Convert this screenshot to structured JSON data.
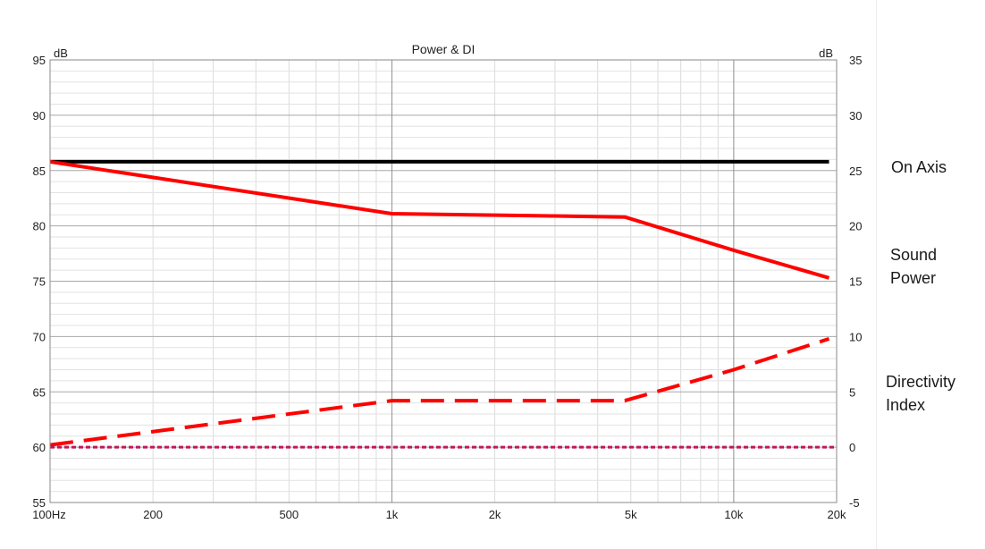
{
  "chart_data": {
    "type": "line",
    "title": "Power & DI",
    "left_axis": {
      "unit": "dB",
      "ylim": [
        55,
        95
      ],
      "ticks": [
        95,
        90,
        85,
        80,
        75,
        70,
        65,
        60,
        55
      ]
    },
    "right_axis": {
      "unit": "dB",
      "ylim": [
        -5,
        35
      ],
      "ticks": [
        35,
        30,
        25,
        20,
        15,
        10,
        5,
        0,
        -5
      ]
    },
    "x_axis": {
      "scale": "log",
      "xlim": [
        100,
        20000
      ],
      "tick_values": [
        100,
        200,
        500,
        1000,
        2000,
        5000,
        10000,
        20000
      ],
      "tick_labels": [
        "100Hz",
        "200",
        "500",
        "1k",
        "2k",
        "5k",
        "10k",
        "20k"
      ]
    },
    "grid": true,
    "series": [
      {
        "name": "On Axis",
        "axis": "left",
        "style": "solid",
        "color": "#000000",
        "x": [
          100,
          19000
        ],
        "y": [
          85.8,
          85.8
        ]
      },
      {
        "name": "Sound Power",
        "axis": "left",
        "style": "solid",
        "color": "#ff0000",
        "x": [
          100,
          1000,
          4800,
          10000,
          19000
        ],
        "y": [
          85.8,
          81.1,
          80.8,
          77.8,
          75.3
        ]
      },
      {
        "name": "Directivity Index",
        "axis": "right",
        "style": "dashed",
        "color": "#ff0000",
        "x": [
          100,
          1000,
          4800,
          10000,
          19000
        ],
        "y": [
          0.2,
          4.2,
          4.2,
          7.0,
          9.8
        ]
      },
      {
        "name": "",
        "axis": "right",
        "style": "dotted",
        "color": "#c0185a",
        "x": [
          100,
          20000
        ],
        "y": [
          0,
          0
        ]
      }
    ]
  },
  "legend": {
    "on_axis": "On Axis",
    "sound_power": "Sound\nPower",
    "directivity_index": "Directivity\nIndex"
  }
}
